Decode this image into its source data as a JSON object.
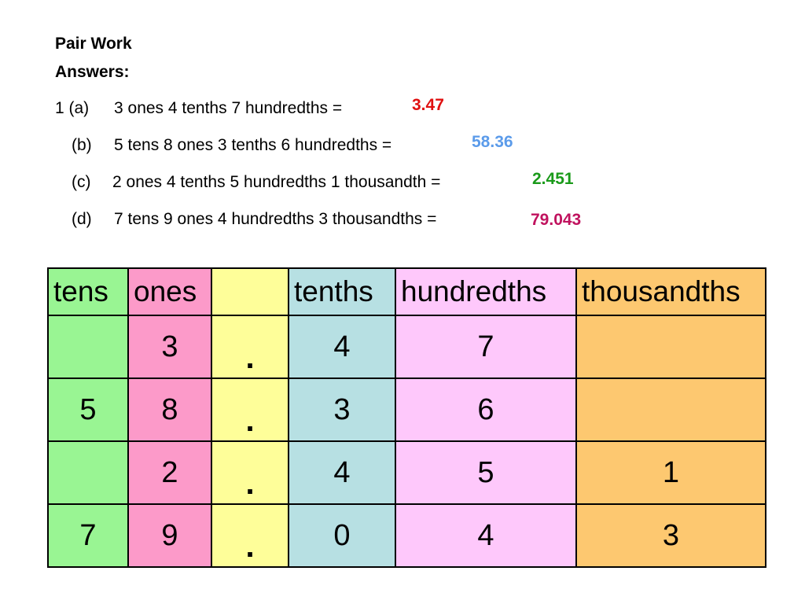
{
  "title": "Pair Work",
  "subtitle": "Answers:",
  "questions": [
    {
      "label": "1 (a)",
      "text": "3 ones 4 tenths 7 hundredths =",
      "answer": "3.47",
      "answer_color": "#e01010"
    },
    {
      "label": "(b)",
      "text": "5 tens 8 ones 3 tenths 6 hundredths =",
      "answer": "58.36",
      "answer_color": "#5b9bea"
    },
    {
      "label": "(c)",
      "text": "2 ones 4 tenths 5 hundredths 1 thousandth =",
      "answer": "2.451",
      "answer_color": "#1a9a1a"
    },
    {
      "label": "(d)",
      "text": "7 tens 9 ones 4 hundredths 3 thousandths =",
      "answer": "79.043",
      "answer_color": "#c0125e"
    }
  ],
  "table": {
    "headers": [
      "tens",
      "ones",
      "",
      "tenths",
      "hundredths",
      "thousandths"
    ],
    "rows": [
      [
        "",
        "3",
        ".",
        "4",
        "7",
        ""
      ],
      [
        "5",
        "8",
        ".",
        "3",
        "6",
        ""
      ],
      [
        "",
        "2",
        ".",
        "4",
        "5",
        "1"
      ],
      [
        "7",
        "9",
        ".",
        "0",
        "4",
        "3"
      ]
    ],
    "column_colors": [
      "#99f593",
      "#fc9ac9",
      "#fefe99",
      "#b7e0e3",
      "#fec8fb",
      "#fdc870"
    ]
  }
}
